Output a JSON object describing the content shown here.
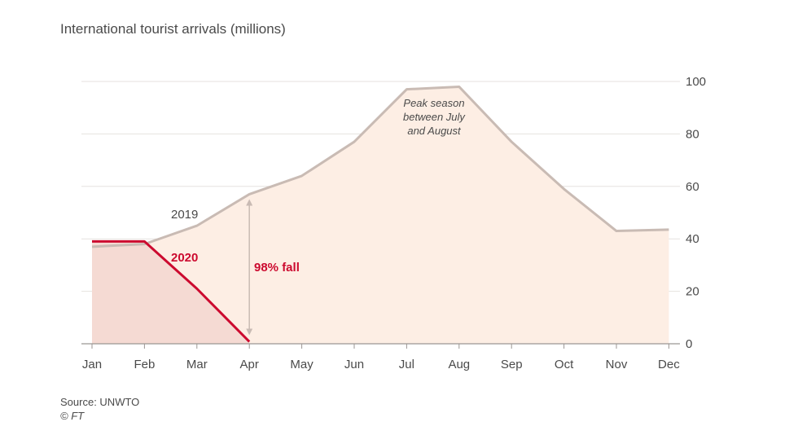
{
  "title": "International tourist arrivals (millions)",
  "source": "Source: UNWTO",
  "copyright": "© FT",
  "colors": {
    "line_2019": "#c9bbb4",
    "area_2019": "#fdeee4",
    "line_2020": "#cc0a2f",
    "area_2020": "#f5dad3",
    "grid": "#e6e2df",
    "axis": "#9b9693",
    "text": "#4a4a4a"
  },
  "chart_data": {
    "type": "area",
    "x_categories": [
      "Jan",
      "Feb",
      "Mar",
      "Apr",
      "May",
      "Jun",
      "Jul",
      "Aug",
      "Sep",
      "Oct",
      "Nov",
      "Dec"
    ],
    "y_ticks": [
      0,
      20,
      40,
      60,
      80,
      100
    ],
    "ylim": [
      0,
      100
    ],
    "y_axis_side": "right",
    "grid": true,
    "series": [
      {
        "name": "2019",
        "values": [
          37,
          38,
          45,
          57,
          64,
          77,
          97,
          98,
          77,
          59,
          43,
          43.5
        ]
      },
      {
        "name": "2020",
        "values": [
          39,
          39,
          21,
          0.8
        ]
      }
    ],
    "annotations": {
      "peak_lines": [
        "Peak season",
        "between July",
        "and August"
      ],
      "fall_label": "98% fall"
    }
  }
}
